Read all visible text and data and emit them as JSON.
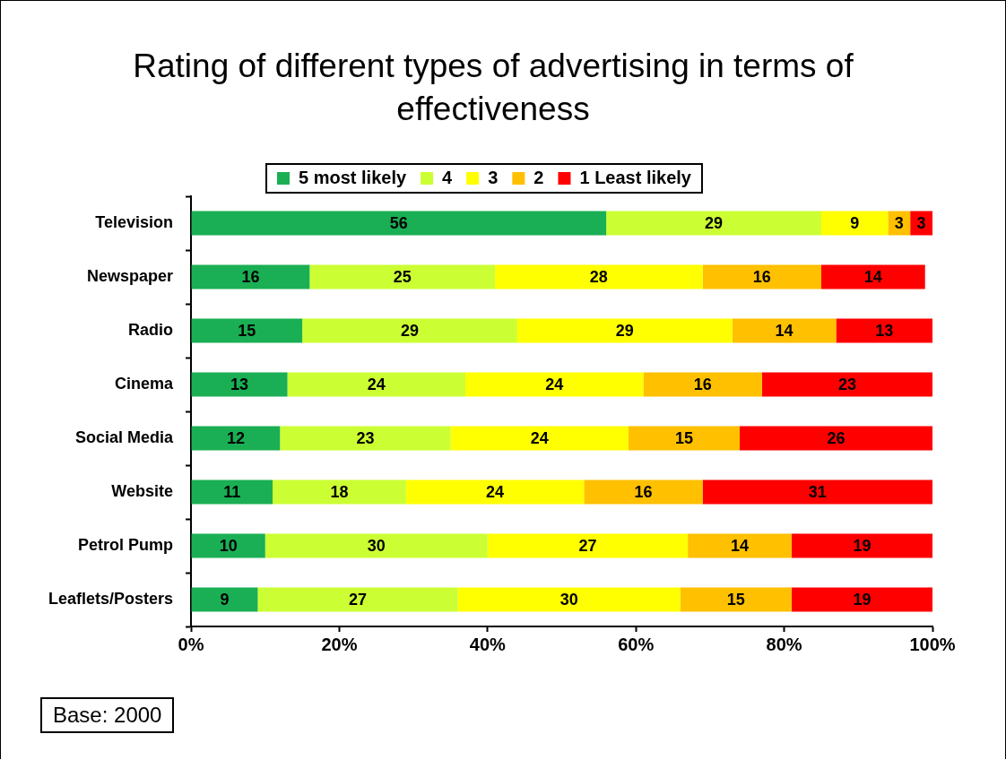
{
  "chart_data": {
    "type": "bar",
    "orientation": "horizontal",
    "stacked": true,
    "title": "Rating of different types of advertising in terms of effectiveness",
    "categories": [
      "Television",
      "Newspaper",
      "Radio",
      "Cinema",
      "Social Media",
      "Website",
      "Petrol Pump",
      "Leaflets/Posters"
    ],
    "series": [
      {
        "name": "5 most likely",
        "color": "#1aaf54",
        "values": [
          56,
          16,
          15,
          13,
          12,
          11,
          10,
          9
        ]
      },
      {
        "name": "4",
        "color": "#ccff33",
        "values": [
          29,
          25,
          29,
          24,
          23,
          18,
          30,
          27
        ]
      },
      {
        "name": "3",
        "color": "#ffff00",
        "values": [
          9,
          28,
          29,
          24,
          24,
          24,
          27,
          30
        ]
      },
      {
        "name": "2",
        "color": "#ffc000",
        "values": [
          3,
          16,
          14,
          16,
          15,
          16,
          14,
          15
        ]
      },
      {
        "name": "1 Least likely",
        "color": "#ff0000",
        "values": [
          3,
          14,
          13,
          23,
          26,
          31,
          19,
          19
        ]
      }
    ],
    "xlim": [
      0,
      100
    ],
    "xticks": [
      {
        "value": 0,
        "label": "0%"
      },
      {
        "value": 20,
        "label": "20%"
      },
      {
        "value": 40,
        "label": "40%"
      },
      {
        "value": 60,
        "label": "60%"
      },
      {
        "value": 80,
        "label": "80%"
      },
      {
        "value": 100,
        "label": "100%"
      }
    ],
    "data_labels": true,
    "grid": false,
    "legend": "top",
    "annotations": [
      "Base: 2000"
    ]
  }
}
